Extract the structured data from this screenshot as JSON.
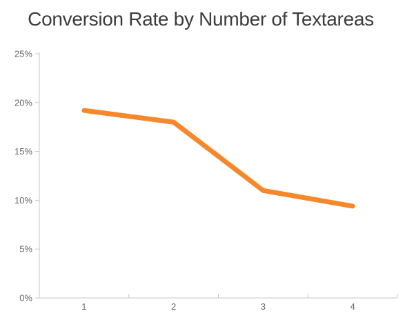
{
  "colors": {
    "line": "#F6882C",
    "axis": "#C7C7C7",
    "tick_label": "#666666",
    "title": "#3C3C3C",
    "background": "#FFFFFF"
  },
  "chart_data": {
    "type": "line",
    "title": "Conversion Rate by Number of Textareas",
    "categories": [
      "1",
      "2",
      "3",
      "4"
    ],
    "series": [
      {
        "name": "Conversion Rate",
        "values": [
          19.2,
          18,
          11,
          9.4
        ]
      }
    ],
    "xlabel": "",
    "ylabel": "",
    "ylim": [
      0,
      25
    ],
    "ytick_step": 5,
    "ytick_labels": [
      "0%",
      "5%",
      "10%",
      "15%",
      "20%",
      "25%"
    ],
    "grid": false,
    "legend": false,
    "line_width": 7
  }
}
